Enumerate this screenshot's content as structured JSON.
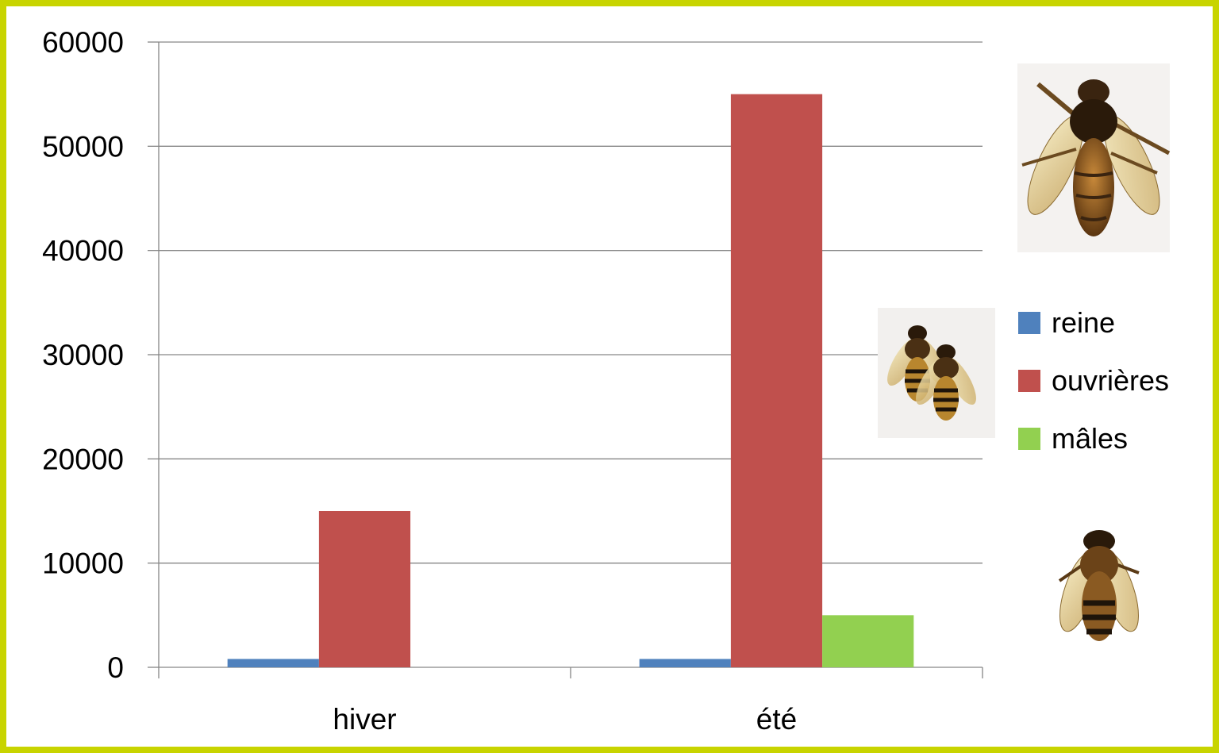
{
  "chart_data": {
    "type": "bar",
    "categories": [
      "hiver",
      "été"
    ],
    "series": [
      {
        "name": "reine",
        "color": "#4f81bd",
        "values": [
          800,
          800
        ]
      },
      {
        "name": "ouvrières",
        "color": "#c0504d",
        "values": [
          15000,
          55000
        ]
      },
      {
        "name": "mâles",
        "color": "#92d050",
        "values": [
          0,
          5000
        ]
      }
    ],
    "ylim": [
      0,
      60000
    ],
    "yticks": [
      0,
      10000,
      20000,
      30000,
      40000,
      50000,
      60000
    ],
    "grid": true,
    "legend_position": "right"
  },
  "frame_color": "#c8d400",
  "icons": [
    "queen-bee-icon",
    "worker-bees-icon",
    "drone-bee-icon"
  ]
}
